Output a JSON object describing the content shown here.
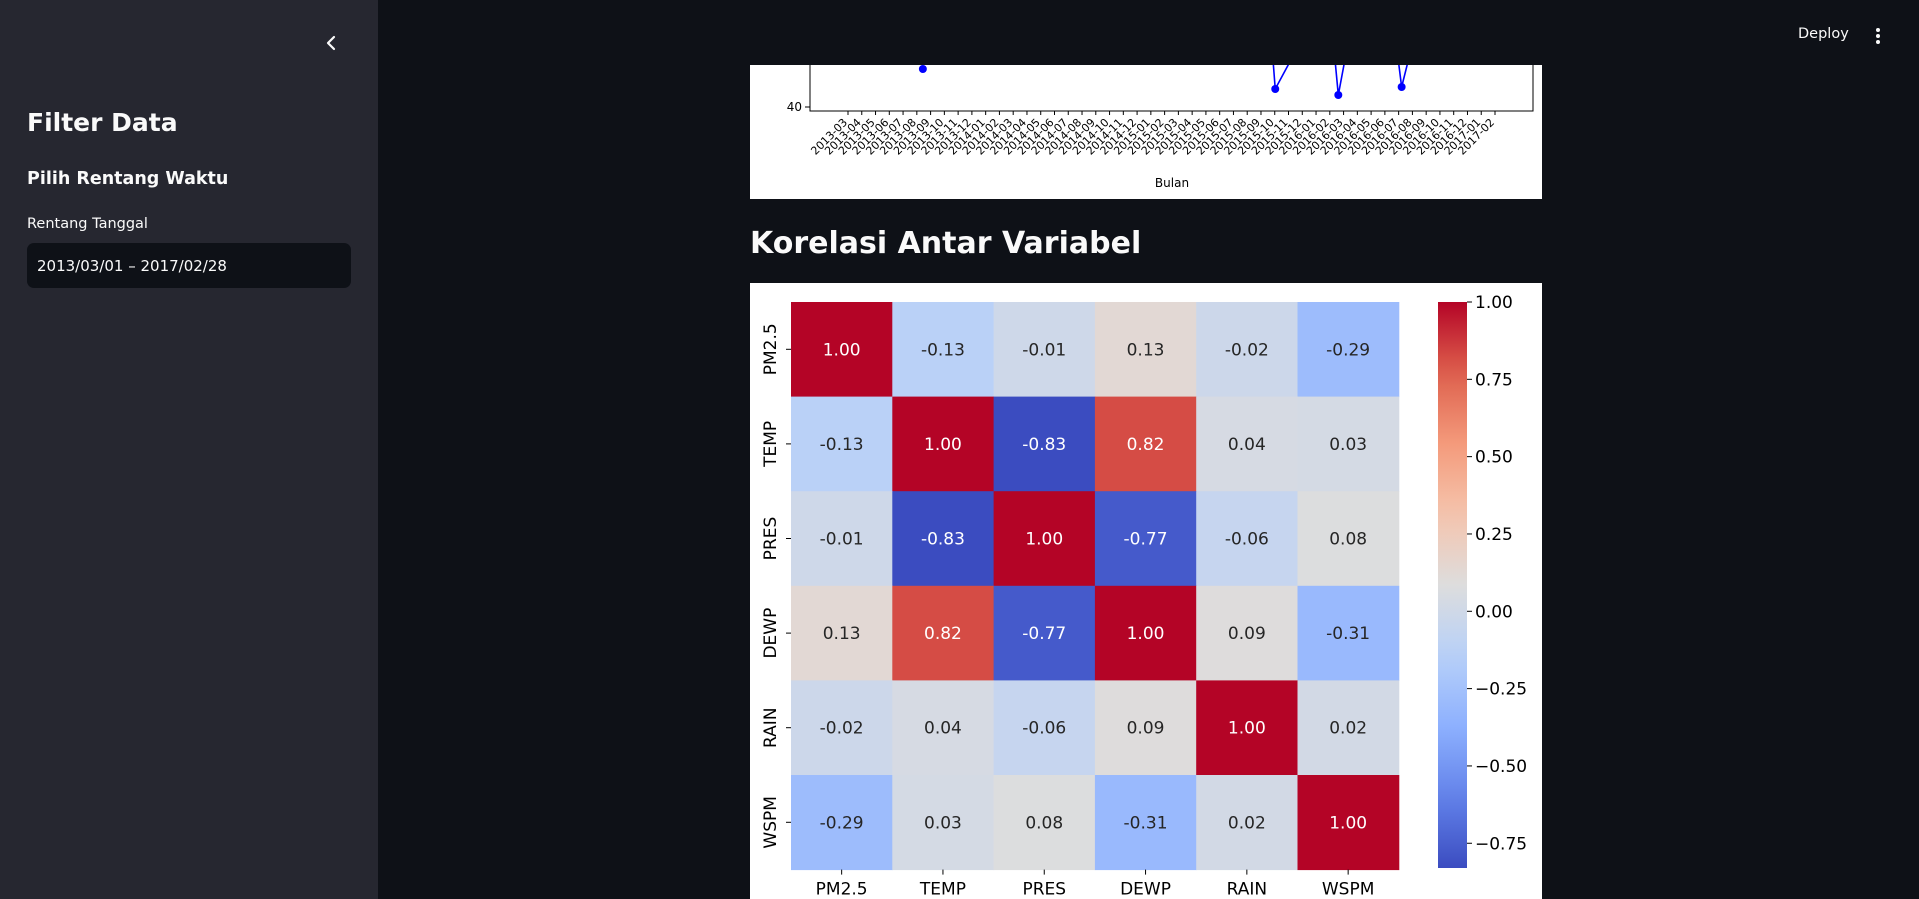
{
  "sidebar": {
    "title": "Filter Data",
    "subtitle": "Pilih Rentang Waktu",
    "date_label": "Rentang Tanggal",
    "date_value": "2013/03/01 – 2017/02/28"
  },
  "header": {
    "deploy_label": "Deploy"
  },
  "top_chart": {
    "xlabel": "Bulan",
    "y_tick": "40",
    "series_color": "#0000ff",
    "months": [
      "2013-03",
      "2013-04",
      "2013-05",
      "2013-06",
      "2013-07",
      "2013-08",
      "2013-09",
      "2013-10",
      "2013-11",
      "2013-12",
      "2014-01",
      "2014-02",
      "2014-03",
      "2014-04",
      "2014-05",
      "2014-06",
      "2014-07",
      "2014-08",
      "2014-09",
      "2014-10",
      "2014-11",
      "2014-12",
      "2015-01",
      "2015-02",
      "2015-03",
      "2015-04",
      "2015-05",
      "2015-06",
      "2015-07",
      "2015-08",
      "2015-09",
      "2015-10",
      "2015-11",
      "2015-12",
      "2016-01",
      "2016-02",
      "2016-03",
      "2016-04",
      "2016-05",
      "2016-06",
      "2016-07",
      "2016-08",
      "2016-09",
      "2016-10",
      "2016-11",
      "2016-12",
      "2017-01",
      "2017-02"
    ]
  },
  "section": {
    "title": "Korelasi Antar Variabel"
  },
  "chart_data": {
    "type": "heatmap",
    "variables": [
      "PM2.5",
      "TEMP",
      "PRES",
      "DEWP",
      "RAIN",
      "WSPM"
    ],
    "matrix": [
      [
        1.0,
        -0.13,
        -0.01,
        0.13,
        -0.02,
        -0.29
      ],
      [
        -0.13,
        1.0,
        -0.83,
        0.82,
        0.04,
        0.03
      ],
      [
        -0.01,
        -0.83,
        1.0,
        -0.77,
        -0.06,
        0.08
      ],
      [
        0.13,
        0.82,
        -0.77,
        1.0,
        0.09,
        -0.31
      ],
      [
        -0.02,
        0.04,
        -0.06,
        0.09,
        1.0,
        0.02
      ],
      [
        -0.29,
        0.03,
        0.08,
        -0.31,
        0.02,
        1.0
      ]
    ],
    "colormap": "coolwarm",
    "colorbar_ticks": [
      "1.00",
      "0.75",
      "0.50",
      "0.25",
      "0.00",
      "−0.25",
      "−0.50",
      "−0.75"
    ],
    "colorbar_range": [
      -0.83,
      1.0
    ]
  }
}
